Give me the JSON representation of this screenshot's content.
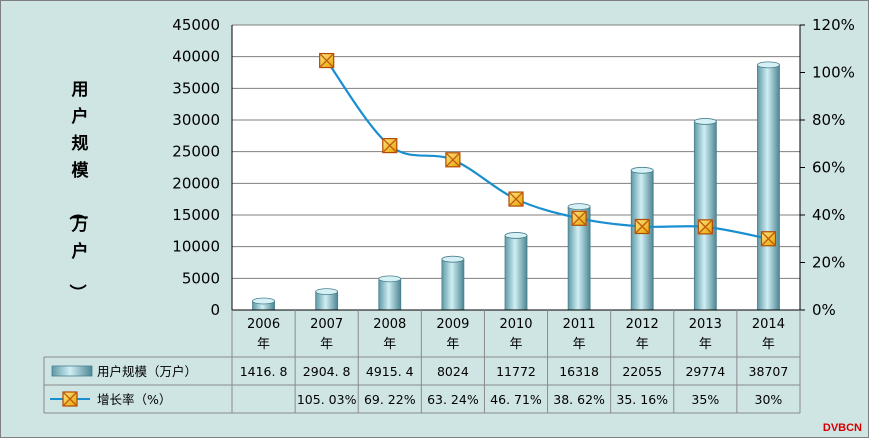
{
  "chart_data": {
    "type": "bar",
    "categories": [
      "2006\n年",
      "2007\n年",
      "2008\n年",
      "2009\n年",
      "2010\n年",
      "2011\n年",
      "2012\n年",
      "2013\n年",
      "2014\n年"
    ],
    "ylabel": "用户规模（万户）",
    "ylim": [
      0,
      45000
    ],
    "y_ticks": [
      "0",
      "5000",
      "10000",
      "15000",
      "20000",
      "25000",
      "30000",
      "35000",
      "40000",
      "45000"
    ],
    "y2lim": [
      0,
      120
    ],
    "y2_ticks": [
      "0%",
      "20%",
      "40%",
      "60%",
      "80%",
      "100%",
      "120%"
    ],
    "grid": true,
    "legend": "bottom-table",
    "series": [
      {
        "name": "用户规模（万户）",
        "type": "bar",
        "values": [
          1416.8,
          2904.8,
          4915.4,
          8024,
          11772,
          16318,
          22055,
          29774,
          38707
        ],
        "labels": [
          "1416. 8",
          "2904. 8",
          "4915. 4",
          "8024",
          "11772",
          "16318",
          "22055",
          "29774",
          "38707"
        ],
        "color": "#8fc3cc"
      },
      {
        "name": "增长率（%）",
        "type": "line",
        "axis": "right",
        "values": [
          null,
          105.03,
          69.22,
          63.24,
          46.71,
          38.62,
          35.16,
          35,
          30
        ],
        "labels": [
          "",
          "105. 03%",
          "69. 22%",
          "63. 24%",
          "46. 71%",
          "38. 62%",
          "35. 16%",
          "35%",
          "30%"
        ],
        "color": "#1a8fd0"
      }
    ],
    "watermark": "DVBCN"
  }
}
